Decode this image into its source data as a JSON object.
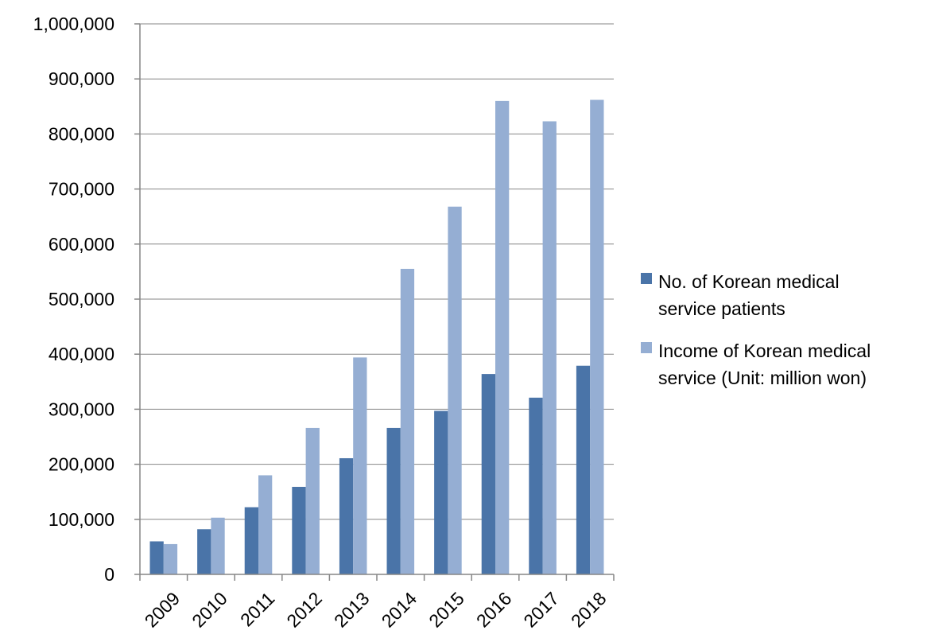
{
  "chart_data": {
    "type": "bar",
    "categories": [
      "2009",
      "2010",
      "2011",
      "2012",
      "2013",
      "2014",
      "2015",
      "2016",
      "2017",
      "2018"
    ],
    "series": [
      {
        "name": "No. of Korean medical service patients",
        "legend_lines": [
          "No. of Korean medical",
          "service patients"
        ],
        "color": "#4a74a8",
        "values": [
          60000,
          82000,
          122000,
          159000,
          211000,
          266000,
          297000,
          364000,
          321000,
          379000
        ]
      },
      {
        "name": "Income of Korean medical service (Unit: million won)",
        "legend_lines": [
          "Income of Korean medical",
          "service (Unit: million won)"
        ],
        "color": "#95aed3",
        "values": [
          55000,
          103000,
          180000,
          266000,
          394000,
          555000,
          668000,
          860000,
          823000,
          862000
        ]
      }
    ],
    "y_tick_labels": [
      "0",
      "100,000",
      "200,000",
      "300,000",
      "400,000",
      "500,000",
      "600,000",
      "700,000",
      "800,000",
      "900,000",
      "1,000,000"
    ],
    "ylim": [
      0,
      1000000
    ],
    "title": "",
    "xlabel": "",
    "ylabel": "",
    "grid": true,
    "legend_position": "right"
  }
}
